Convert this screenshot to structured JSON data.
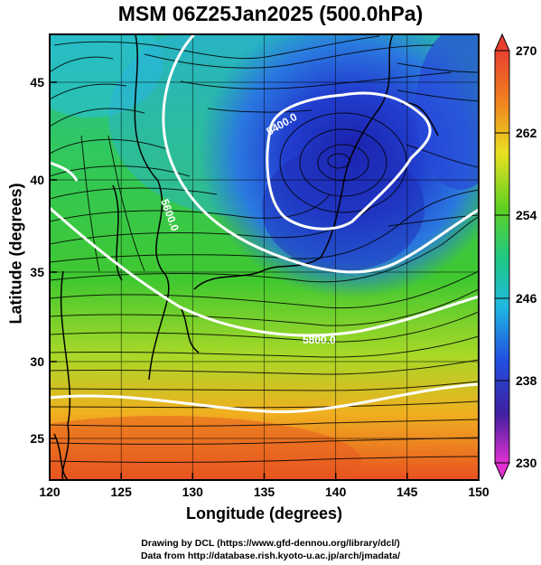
{
  "title": "MSM 06Z25Jan2025 (500.0hPa)",
  "axes": {
    "xlabel": "Longitude (degrees)",
    "ylabel": "Latitude  (degrees)",
    "xlim": [
      120,
      150
    ],
    "ylim": [
      22.5,
      47.5
    ],
    "xticks": [
      "120",
      "125",
      "130",
      "135",
      "140",
      "145",
      "150"
    ],
    "yticks": [
      "25",
      "30",
      "35",
      "40",
      "45"
    ]
  },
  "colorbar": {
    "range": [
      230,
      270
    ],
    "labels": [
      "270",
      "262",
      "254",
      "246",
      "238",
      "230"
    ]
  },
  "contours": {
    "labels": [
      "5400.0",
      "5600.0",
      "5800.0"
    ]
  },
  "credits": {
    "line1": "Drawing by DCL (https://www.gfd-dennou.org/library/dcl/)",
    "line2": "Data from http://database.rish.kyoto-u.ac.jp/arch/jmadata/"
  },
  "colors": {
    "cold": "#2038d0",
    "mid": "#30c838",
    "warm": "#e85020"
  }
}
